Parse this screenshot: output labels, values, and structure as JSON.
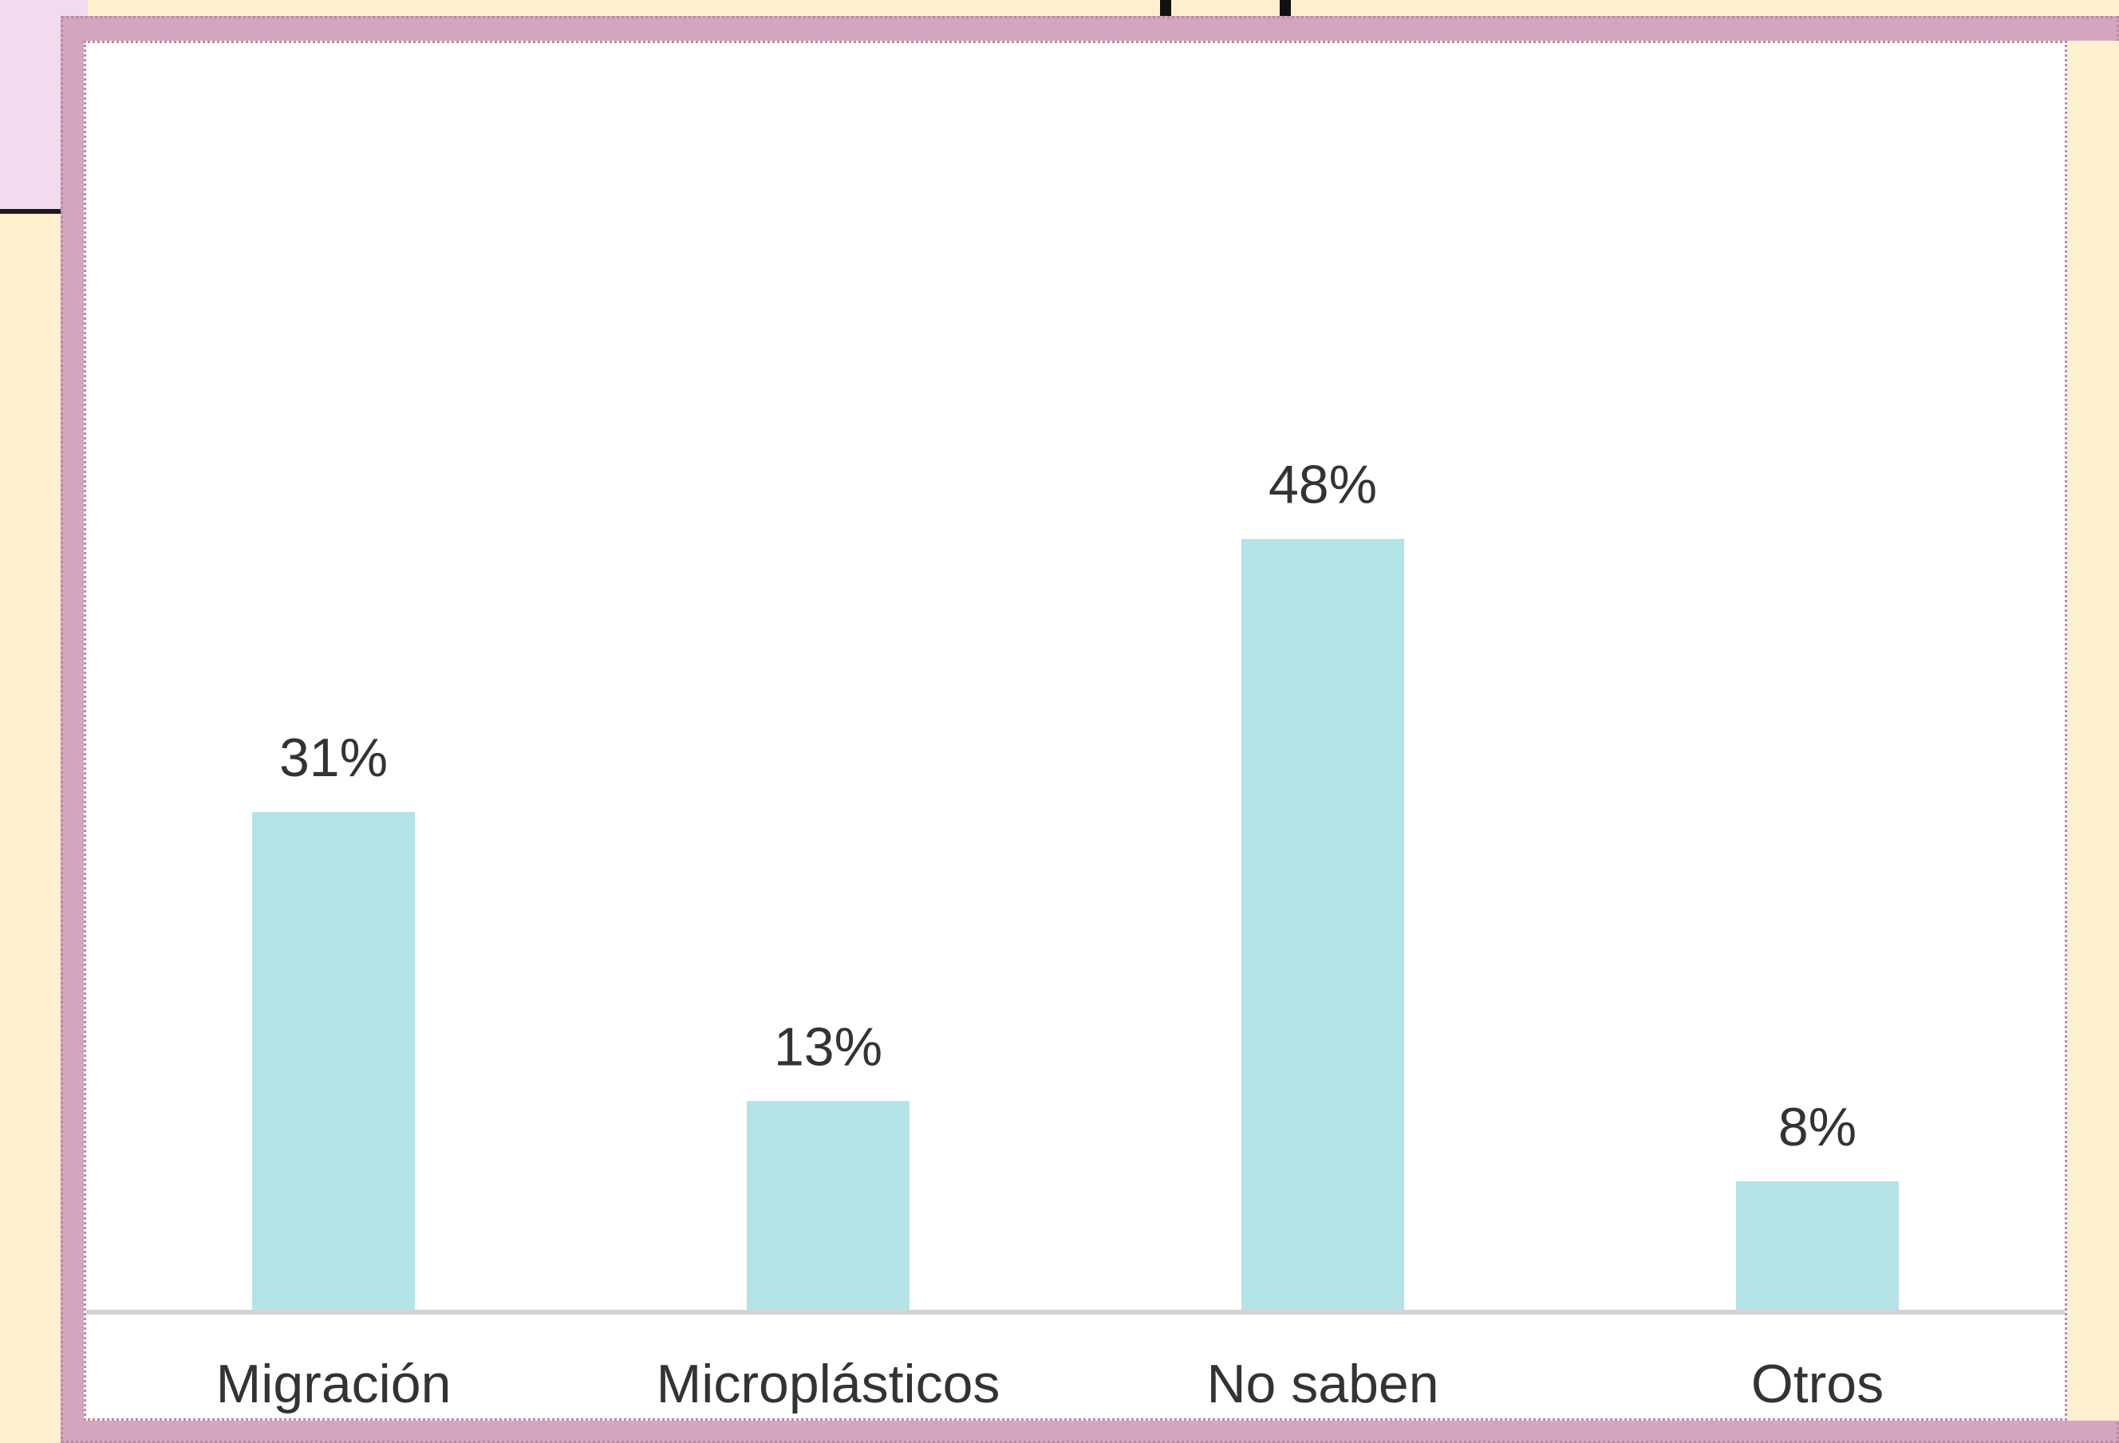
{
  "chart_data": {
    "type": "bar",
    "categories": [
      "Migración",
      "Microplásticos",
      "No saben",
      "Otros"
    ],
    "values": [
      31,
      13,
      48,
      8
    ],
    "value_labels": [
      "31%",
      "13%",
      "48%",
      "8%"
    ],
    "unit": "%",
    "ylim": [
      0,
      60
    ],
    "grid": false,
    "legend": "none",
    "title": "",
    "xlabel": "",
    "ylabel": ""
  },
  "colors": {
    "bar": "#b3e3e7",
    "axis": "#d3d3d3",
    "label": "#333333",
    "frame": "#d5a5c0",
    "slide_background": "#fdf0cf"
  }
}
